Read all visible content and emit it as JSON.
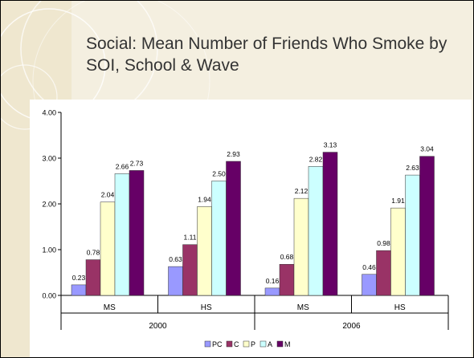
{
  "slide": {
    "title": "Social: Mean Number of Friends Who Smoke by SOI, School & Wave"
  },
  "colors": {
    "background": "#f4efe0",
    "decorative_band": "#efe7cf",
    "title_text": "#333333"
  },
  "chart_data": {
    "type": "bar",
    "title": "",
    "xlabel": "",
    "ylabel": "",
    "ylim": [
      0,
      4
    ],
    "yticks": [
      "0.00",
      "1.00",
      "2.00",
      "3.00",
      "4.00"
    ],
    "grid": false,
    "legend_position": "bottom",
    "categories": [
      "MS",
      "HS",
      "MS",
      "HS"
    ],
    "groups": [
      {
        "label": "2000",
        "categories": [
          "MS",
          "HS"
        ]
      },
      {
        "label": "2006",
        "categories": [
          "MS",
          "HS"
        ]
      }
    ],
    "series": [
      {
        "name": "PC",
        "color": "#9999ff",
        "values": [
          0.23,
          0.63,
          0.16,
          0.46
        ],
        "labels": [
          "0.23",
          "0.63",
          "0.16",
          "0.46"
        ]
      },
      {
        "name": "C",
        "color": "#993366",
        "values": [
          0.78,
          1.11,
          0.68,
          0.98
        ],
        "labels": [
          "0.78",
          "1.11",
          "0.68",
          "0.98"
        ]
      },
      {
        "name": "P",
        "color": "#ffffcc",
        "values": [
          2.04,
          1.94,
          2.12,
          1.91
        ],
        "labels": [
          "2.04",
          "1.94",
          "2.12",
          "1.91"
        ]
      },
      {
        "name": "A",
        "color": "#ccffff",
        "values": [
          2.66,
          2.5,
          2.82,
          2.63
        ],
        "labels": [
          "2.66",
          "2.50",
          "2.82",
          "2.63"
        ]
      },
      {
        "name": "M",
        "color": "#660066",
        "values": [
          2.73,
          2.93,
          3.13,
          3.04
        ],
        "labels": [
          "2.73",
          "2.93",
          "3.13",
          "3.04"
        ]
      }
    ]
  }
}
